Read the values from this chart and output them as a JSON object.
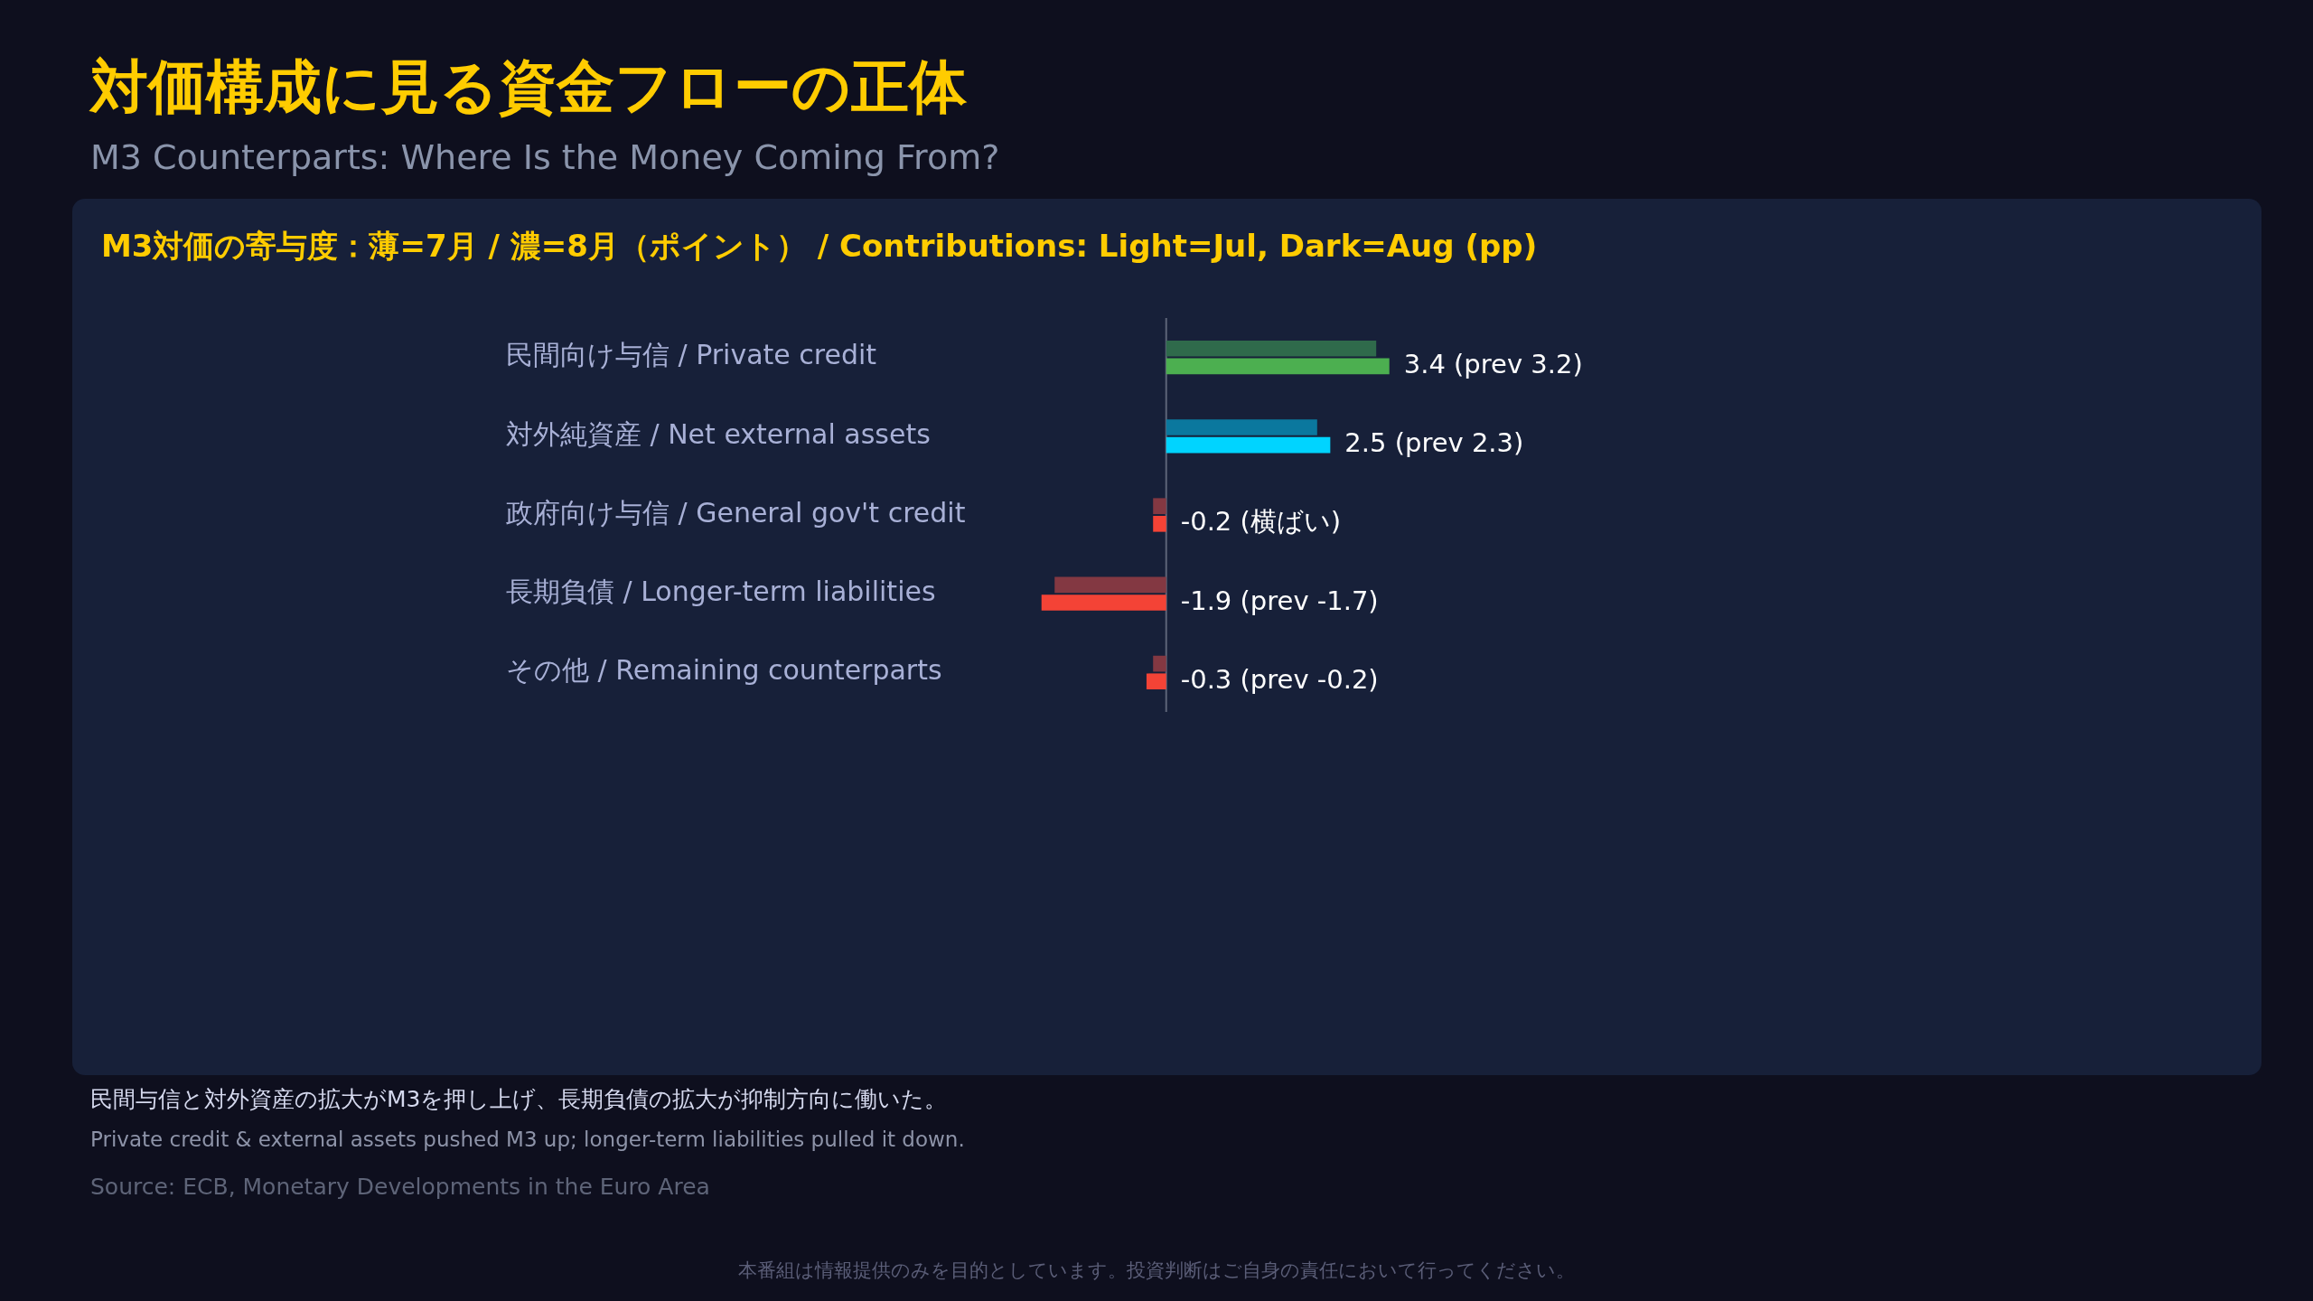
{
  "chart_data": {
    "type": "bar",
    "orientation": "horizontal",
    "title": "対価構成に見る資金フローの正体",
    "subtitle": "M3 Counterparts: Where Is the Money Coming From?",
    "categories": [
      "民間向け与信 / Private credit",
      "対外純資産 / Net external assets",
      "政府向け与信 / General gov't credit",
      "長期負債 / Longer-term liabilities",
      "その他 / Remaining counterparts"
    ],
    "series": [
      {
        "colors": [
          "#2f6a4b",
          "#0b789e",
          "#833842",
          "#833842",
          "#833842"
        ],
        "values": [
          3.2,
          2.3,
          -0.2,
          -1.7,
          -0.2
        ]
      },
      {
        "colors": [
          "#4caf50",
          "#00d4ff",
          "#f44336",
          "#f44336",
          "#f44336"
        ],
        "values": [
          3.4,
          2.5,
          -0.2,
          -1.9,
          -0.3
        ],
        "value_labels": [
          "3.4 (prev 3.2)",
          "2.5 (prev 2.3)",
          "-0.2 (横ばい)",
          "-1.9 (prev -1.7)",
          "-0.3 (prev -0.2)"
        ]
      }
    ],
    "tick_labels": "y",
    "annotations": [
      "M3対価の寄与度：薄=7月 / 濃=8月（ポイント） / Contributions: Light=Jul, Dark=Aug (pp)",
      "民間与信と対外資産の拡大がM3を押し上げ、長期負債の拡大が抑制方向に働いた。",
      "Private credit & external assets pushed M3 up; longer-term liabilities pulled it down.",
      "Source: ECB, Monetary Developments in the Euro Area",
      "本番組は情報提供のみを目的としています。投資判断はご自身の責任において行ってください。"
    ]
  }
}
